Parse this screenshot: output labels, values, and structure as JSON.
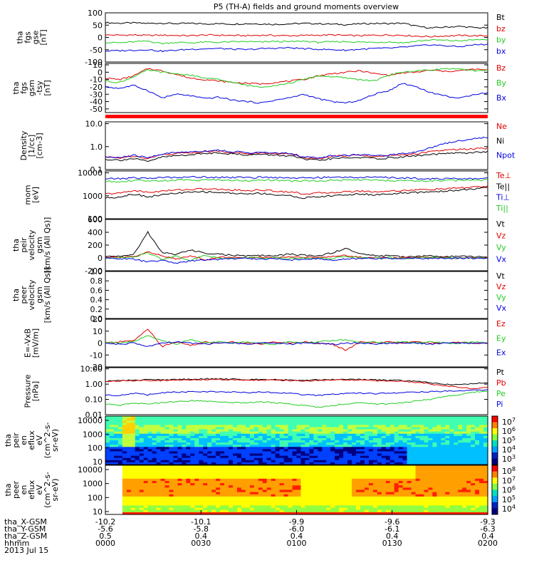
{
  "page": {
    "title": "P5 (TH-A) fields and ground moments overview"
  },
  "colors": {
    "black": "#000000",
    "red": "#e00000",
    "green": "#22cc22",
    "blue": "#0000e0",
    "separator_bar": "#ff0000"
  },
  "chart_data": [
    {
      "id": "fgs_gse",
      "type": "line",
      "ylabel": [
        "tha",
        "fgs",
        "gse",
        "[nT]"
      ],
      "ylim": [
        -100,
        100
      ],
      "ticks": [
        100,
        50,
        0,
        -50,
        -100
      ],
      "series": [
        {
          "name": "Bt",
          "color": "black",
          "values": [
            60,
            58,
            59,
            57,
            58,
            56,
            57,
            55,
            56,
            54,
            56,
            55,
            53,
            55,
            57,
            56,
            54,
            52,
            55,
            57,
            56,
            58,
            45,
            38,
            42,
            45,
            40,
            38
          ]
        },
        {
          "name": "bz",
          "color": "red",
          "values": [
            10,
            9,
            10,
            8,
            9,
            8,
            7,
            10,
            9,
            8,
            7,
            9,
            8,
            7,
            8,
            9,
            10,
            8,
            7,
            9,
            10,
            9,
            5,
            3,
            6,
            8,
            7,
            6
          ]
        },
        {
          "name": "by",
          "color": "green",
          "values": [
            -20,
            -22,
            -18,
            -15,
            -25,
            -20,
            -22,
            -19,
            -20,
            -18,
            -17,
            -19,
            -16,
            -18,
            -15,
            -20,
            -18,
            -17,
            -19,
            -20,
            -18,
            -22,
            -15,
            -10,
            -12,
            -14,
            -10,
            -8
          ]
        },
        {
          "name": "bx",
          "color": "blue",
          "values": [
            -55,
            -54,
            -52,
            -50,
            -56,
            -52,
            -48,
            -46,
            -45,
            -48,
            -50,
            -46,
            -44,
            -42,
            -46,
            -48,
            -50,
            -52,
            -48,
            -45,
            -44,
            -40,
            -35,
            -30,
            -34,
            -38,
            -30,
            -28
          ]
        }
      ]
    },
    {
      "id": "fgs_gsm",
      "type": "line",
      "ylabel": [
        "tha",
        "fgs",
        "gsm",
        "-tsy",
        "[nT]"
      ],
      "ylim": [
        -55,
        12
      ],
      "ticks": [
        10,
        0,
        -10,
        -20,
        -30,
        -40,
        -50
      ],
      "series": [
        {
          "name": "Bz",
          "color": "red",
          "values": [
            -8,
            -10,
            -5,
            5,
            2,
            -3,
            -8,
            -10,
            -12,
            -14,
            -15,
            -16,
            -14,
            -12,
            -10,
            -5,
            -2,
            0,
            2,
            -2,
            -4,
            -1,
            0,
            3,
            1,
            2,
            4,
            3
          ]
        },
        {
          "name": "By",
          "color": "green",
          "values": [
            -12,
            -14,
            -6,
            3,
            0,
            -2,
            -4,
            -8,
            -10,
            -14,
            -18,
            -20,
            -18,
            -15,
            -10,
            -5,
            -6,
            -8,
            -10,
            -12,
            -4,
            0,
            2,
            3,
            5,
            4,
            2,
            3
          ]
        },
        {
          "name": "Bx",
          "color": "blue",
          "values": [
            -20,
            -22,
            -18,
            -25,
            -35,
            -30,
            -32,
            -36,
            -34,
            -38,
            -40,
            -42,
            -38,
            -35,
            -30,
            -36,
            -40,
            -42,
            -38,
            -30,
            -25,
            -15,
            -20,
            -28,
            -32,
            -36,
            -30,
            -28
          ]
        }
      ]
    },
    {
      "id": "density",
      "type": "line",
      "log": true,
      "ylabel": [
        "Density",
        "[1/cc]",
        "[cm-3]"
      ],
      "ylim": [
        0.1,
        12
      ],
      "ticks": [
        "10.0",
        "1.0",
        "0.1"
      ],
      "series": [
        {
          "name": "Ne",
          "color": "red",
          "values": [
            0.35,
            0.32,
            0.4,
            0.3,
            0.45,
            0.5,
            0.55,
            0.6,
            0.65,
            0.55,
            0.5,
            0.52,
            0.5,
            0.48,
            0.35,
            0.3,
            0.38,
            0.4,
            0.42,
            0.38,
            0.4,
            0.45,
            0.5,
            0.6,
            0.7,
            0.75,
            0.8,
            0.85
          ]
        },
        {
          "name": "Ni",
          "color": "black",
          "values": [
            0.28,
            0.26,
            0.3,
            0.22,
            0.35,
            0.4,
            0.45,
            0.5,
            0.55,
            0.48,
            0.44,
            0.46,
            0.42,
            0.4,
            0.28,
            0.25,
            0.3,
            0.32,
            0.34,
            0.3,
            0.32,
            0.36,
            0.4,
            0.45,
            0.5,
            0.52,
            0.55,
            0.6
          ]
        },
        {
          "name": "Npot",
          "color": "blue",
          "values": [
            0.35,
            0.33,
            0.42,
            0.32,
            0.48,
            0.55,
            0.6,
            0.65,
            0.7,
            0.6,
            0.55,
            0.55,
            0.52,
            0.5,
            0.36,
            0.32,
            0.4,
            0.42,
            0.45,
            0.4,
            0.42,
            0.5,
            0.6,
            0.9,
            1.4,
            1.8,
            2.2,
            2.6
          ]
        }
      ]
    },
    {
      "id": "temperature",
      "type": "line",
      "log": true,
      "ylabel": [
        "mom",
        "[eV]"
      ],
      "ylim": [
        100,
        12000
      ],
      "ticks": [
        "10000",
        "1000",
        "100"
      ],
      "series": [
        {
          "name": "Te⊥",
          "color": "red",
          "values": [
            1200,
            1300,
            1700,
            1400,
            1600,
            1800,
            1900,
            2000,
            1900,
            1800,
            1700,
            1800,
            1600,
            1500,
            1200,
            1300,
            1400,
            1500,
            1600,
            1500,
            1600,
            1700,
            1800,
            1900,
            2000,
            2200,
            2400,
            2600
          ]
        },
        {
          "name": "Te||",
          "color": "black",
          "values": [
            800,
            900,
            1200,
            900,
            1100,
            1300,
            1400,
            1500,
            1400,
            1300,
            1200,
            1300,
            1100,
            1000,
            800,
            900,
            1000,
            1100,
            1200,
            1100,
            1200,
            1300,
            1400,
            1500,
            1600,
            1800,
            2000,
            2200
          ]
        },
        {
          "name": "Ti⊥",
          "color": "blue",
          "values": [
            5500,
            5600,
            6000,
            5800,
            6200,
            6400,
            6500,
            6600,
            6500,
            6300,
            6200,
            6400,
            6300,
            6100,
            6000,
            6200,
            6300,
            6400,
            6500,
            6300,
            6200,
            6000,
            5800,
            5600,
            5500,
            5400,
            5600,
            5700
          ]
        },
        {
          "name": "Ti||",
          "color": "green",
          "values": [
            4200,
            4300,
            4600,
            4400,
            4600,
            4800,
            4900,
            5000,
            4900,
            4700,
            4600,
            4800,
            4700,
            4500,
            4400,
            4600,
            4700,
            4800,
            4900,
            4700,
            4600,
            4500,
            4400,
            4500,
            4600,
            4700,
            4800,
            4900
          ]
        }
      ]
    },
    {
      "id": "peir_velocity",
      "type": "line",
      "ylabel": [
        "tha",
        "peir",
        "velocity",
        "gsm",
        "[km/s (All Qs)]"
      ],
      "ylim": [
        -200,
        600
      ],
      "ticks": [
        600,
        400,
        200,
        0,
        -200
      ],
      "series": [
        {
          "name": "Vt",
          "color": "black",
          "values": [
            20,
            30,
            50,
            400,
            80,
            60,
            120,
            80,
            60,
            40,
            30,
            40,
            30,
            60,
            40,
            30,
            80,
            150,
            60,
            40,
            30,
            20,
            25,
            30,
            20,
            25,
            20,
            15
          ]
        },
        {
          "name": "Vz",
          "color": "red",
          "values": [
            5,
            10,
            20,
            100,
            30,
            -20,
            40,
            -30,
            10,
            5,
            0,
            10,
            5,
            20,
            10,
            5,
            20,
            40,
            10,
            5,
            0,
            5,
            10,
            0,
            5,
            -5,
            0,
            5
          ]
        },
        {
          "name": "Vy",
          "color": "green",
          "values": [
            0,
            5,
            10,
            80,
            -20,
            30,
            -40,
            40,
            0,
            -5,
            10,
            -5,
            10,
            -10,
            0,
            -5,
            -10,
            30,
            -5,
            0,
            5,
            -5,
            0,
            5,
            0,
            5,
            -5,
            0
          ]
        },
        {
          "name": "Vx",
          "color": "blue",
          "values": [
            -5,
            -10,
            -20,
            -60,
            -40,
            -80,
            -50,
            -30,
            -20,
            -10,
            -5,
            -20,
            -10,
            -30,
            -20,
            -10,
            -40,
            -20,
            -10,
            -5,
            -10,
            -5,
            -10,
            -5,
            -10,
            0,
            -5,
            -10
          ]
        }
      ]
    },
    {
      "id": "peer_velocity",
      "type": "line",
      "ylabel": [
        "tha",
        "peer",
        "velocity",
        "gsm",
        "[km/s (All Qs)]"
      ],
      "ylim": [
        0,
        1
      ],
      "ticks": [
        "1.0",
        "0.8",
        "0.6",
        "0.4",
        "0.2",
        "0.0"
      ],
      "series": [
        {
          "name": "Vt",
          "color": "black",
          "values": []
        },
        {
          "name": "Vz",
          "color": "red",
          "values": []
        },
        {
          "name": "Vy",
          "color": "green",
          "values": []
        },
        {
          "name": "Vx",
          "color": "blue",
          "values": []
        }
      ]
    },
    {
      "id": "efield",
      "type": "line",
      "ylabel": [
        "E=-VxB",
        "[mV/m]"
      ],
      "ylim": [
        -20,
        20
      ],
      "ticks": [
        20,
        10,
        0,
        -10,
        -20
      ],
      "series": [
        {
          "name": "Ez",
          "color": "red",
          "values": [
            0,
            1,
            2,
            12,
            -3,
            1,
            -2,
            1,
            0,
            1,
            0,
            -1,
            1,
            0,
            1,
            0,
            -1,
            -6,
            1,
            0,
            1,
            0,
            1,
            0,
            0,
            1,
            0,
            0
          ]
        },
        {
          "name": "Ey",
          "color": "green",
          "values": [
            1,
            0,
            1,
            6,
            2,
            -1,
            3,
            0,
            1,
            0,
            1,
            0,
            -1,
            1,
            0,
            1,
            2,
            3,
            0,
            1,
            0,
            1,
            0,
            1,
            0,
            0,
            1,
            0
          ]
        },
        {
          "name": "Ex",
          "color": "blue",
          "values": [
            0,
            -1,
            0,
            -3,
            0,
            1,
            0,
            -1,
            0,
            0,
            -1,
            0,
            0,
            -1,
            0,
            0,
            -1,
            0,
            0,
            -1,
            0,
            0,
            0,
            -1,
            0,
            0,
            0,
            0
          ]
        }
      ]
    },
    {
      "id": "pressure",
      "type": "line",
      "log": true,
      "ylabel": [
        "Pressure",
        "[nPa]"
      ],
      "ylim": [
        0.01,
        12
      ],
      "ticks": [
        "10.00",
        "1.00",
        "0.10",
        "0.01"
      ],
      "series": [
        {
          "name": "Pt",
          "color": "black",
          "values": [
            1.6,
            1.7,
            1.8,
            2.0,
            1.9,
            2.0,
            2.1,
            2.2,
            2.2,
            2.1,
            2.0,
            2.1,
            2.0,
            1.9,
            1.8,
            1.9,
            2.0,
            2.1,
            2.0,
            1.9,
            1.8,
            1.7,
            1.5,
            1.2,
            1.0,
            0.9,
            1.1,
            1.2
          ]
        },
        {
          "name": "Pb",
          "color": "red",
          "values": [
            1.5,
            1.6,
            1.7,
            1.8,
            1.7,
            1.8,
            1.9,
            2.0,
            2.0,
            1.9,
            1.8,
            1.9,
            1.8,
            1.7,
            1.6,
            1.7,
            1.8,
            1.9,
            1.8,
            1.7,
            1.6,
            1.5,
            1.3,
            1.0,
            0.8,
            0.6,
            0.5,
            0.6
          ]
        },
        {
          "name": "Pe",
          "color": "green",
          "values": [
            0.05,
            0.04,
            0.06,
            0.05,
            0.06,
            0.07,
            0.08,
            0.08,
            0.07,
            0.06,
            0.06,
            0.07,
            0.06,
            0.05,
            0.04,
            0.03,
            0.04,
            0.05,
            0.06,
            0.05,
            0.05,
            0.06,
            0.08,
            0.1,
            0.15,
            0.2,
            0.3,
            0.35
          ]
        },
        {
          "name": "Pi",
          "color": "blue",
          "values": [
            0.2,
            0.18,
            0.25,
            0.2,
            0.28,
            0.3,
            0.32,
            0.33,
            0.32,
            0.3,
            0.28,
            0.3,
            0.28,
            0.26,
            0.2,
            0.18,
            0.22,
            0.24,
            0.26,
            0.24,
            0.25,
            0.28,
            0.3,
            0.32,
            0.35,
            0.38,
            0.4,
            0.42
          ]
        }
      ]
    },
    {
      "id": "peir_eflux",
      "type": "heatmap",
      "ylabel": [
        "tha",
        "peir",
        "en",
        "eflux",
        "eV",
        "(cm^2-s-",
        "sr-eV)"
      ],
      "yticks": [
        "10000",
        "1000",
        "100",
        "10"
      ],
      "colorbar_ticks": [
        "10^7",
        "10^6",
        "10^5",
        "10^4",
        "10^3"
      ]
    },
    {
      "id": "peer_eflux",
      "type": "heatmap",
      "ylabel": [
        "tha",
        "peer",
        "en",
        "eflux",
        "eV",
        "(cm^2-s-",
        "sr-eV)"
      ],
      "yticks": [
        "10000",
        "1000",
        "100",
        "10"
      ],
      "colorbar_ticks": [
        "10^8",
        "10^7",
        "10^6",
        "10^5",
        "10^4"
      ]
    }
  ],
  "xaxis": {
    "rows": [
      {
        "label": "tha_X-GSM",
        "values": [
          "-10.2",
          "-10.1",
          "-9.9",
          "-9.6",
          "-9.3"
        ]
      },
      {
        "label": "tha_Y-GSM",
        "values": [
          "-5.6",
          "-5.8",
          "-6.0",
          "-6.1",
          "-6.3"
        ]
      },
      {
        "label": "tha_Z-GSM",
        "values": [
          "0.5",
          "0.4",
          "0.4",
          "0.4",
          "0.4"
        ]
      },
      {
        "label": "hhmm",
        "values": [
          "0000",
          "0030",
          "0100",
          "0130",
          "0200"
        ]
      }
    ],
    "date": "2013 Jul 15"
  }
}
